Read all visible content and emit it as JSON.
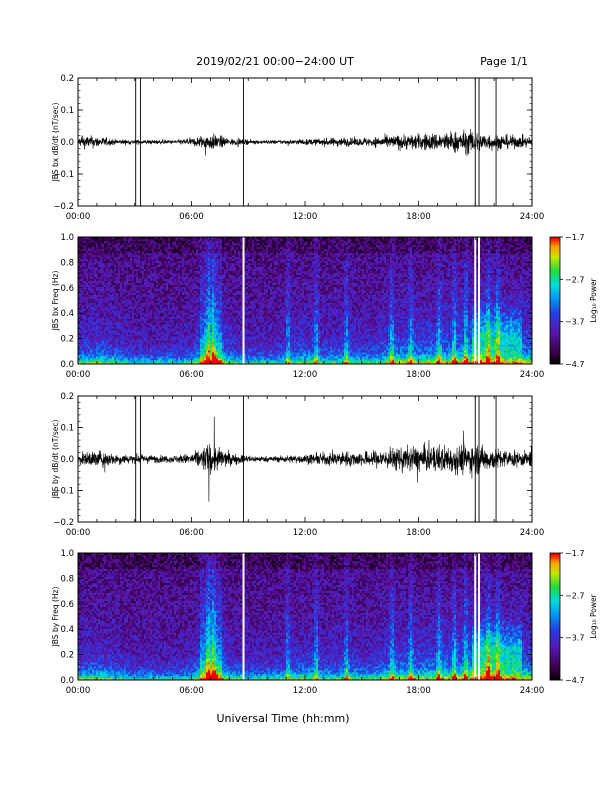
{
  "header": {
    "title": "2019/02/21  00:00−24:00 UT",
    "page": "Page 1/1"
  },
  "footer": {
    "xlabel": "Universal Time (hh:mm)"
  },
  "chart_data": [
    {
      "type": "line",
      "ylabel": "JBS bx dB/dt (nT/sec)",
      "xlim": [
        0,
        24
      ],
      "ylim": [
        -0.2,
        0.2
      ],
      "x_tick_labels": [
        "00:00",
        "06:00",
        "12:00",
        "18:00",
        "24:00"
      ],
      "y_tick_labels": [
        "0.2",
        "0.1",
        "0.0",
        "−0.1",
        "−0.2"
      ],
      "vertical_markers_hours": [
        3.05,
        3.3,
        8.75,
        21.0,
        21.2,
        22.1
      ],
      "envelope": {
        "x": [
          0,
          0.5,
          1,
          2,
          3,
          4,
          5,
          6,
          6.5,
          7,
          7.5,
          8,
          9,
          10,
          11,
          12,
          13,
          14,
          15,
          16,
          17,
          18,
          19,
          20,
          21,
          21.5,
          22,
          23,
          24
        ],
        "amplitude": [
          0.025,
          0.035,
          0.03,
          0.015,
          0.012,
          0.012,
          0.01,
          0.02,
          0.035,
          0.045,
          0.035,
          0.02,
          0.012,
          0.01,
          0.012,
          0.015,
          0.02,
          0.025,
          0.02,
          0.03,
          0.04,
          0.045,
          0.05,
          0.06,
          0.065,
          0.05,
          0.045,
          0.035,
          0.03
        ]
      }
    },
    {
      "type": "heatmap",
      "ylabel": "JBS bx Freq (Hz)",
      "xlim": [
        0,
        24
      ],
      "ylim": [
        0,
        1
      ],
      "x_tick_labels": [
        "00:00",
        "06:00",
        "12:00",
        "18:00",
        "24:00"
      ],
      "y_tick_labels": [
        "1.0",
        "0.8",
        "0.6",
        "0.4",
        "0.2",
        "0.0"
      ],
      "data_gaps_hours": [
        8.75,
        21.0,
        21.2
      ],
      "colorbar": {
        "label": "Log₁₀ Power",
        "range": [
          -4.7,
          -1.7
        ],
        "tick_labels": [
          "−1.7",
          "−2.7",
          "−3.7",
          "−4.7"
        ]
      }
    },
    {
      "type": "line",
      "ylabel": "JBS by dB/dt (nT/sec)",
      "xlim": [
        0,
        24
      ],
      "ylim": [
        -0.2,
        0.2
      ],
      "x_tick_labels": [
        "00:00",
        "06:00",
        "12:00",
        "18:00",
        "24:00"
      ],
      "y_tick_labels": [
        "0.2",
        "0.1",
        "0.0",
        "−0.1",
        "−0.2"
      ],
      "vertical_markers_hours": [
        3.05,
        3.3,
        8.75,
        21.0,
        21.2,
        22.1
      ],
      "envelope": {
        "x": [
          0,
          0.5,
          1,
          2,
          3,
          4,
          5,
          6,
          6.5,
          7,
          7.5,
          8,
          9,
          10,
          11,
          12,
          13,
          14,
          15,
          16,
          17,
          18,
          19,
          20,
          21,
          21.5,
          22,
          23,
          24
        ],
        "amplitude": [
          0.03,
          0.04,
          0.05,
          0.03,
          0.025,
          0.02,
          0.02,
          0.03,
          0.06,
          0.09,
          0.06,
          0.035,
          0.02,
          0.015,
          0.02,
          0.025,
          0.035,
          0.04,
          0.04,
          0.05,
          0.065,
          0.07,
          0.075,
          0.08,
          0.085,
          0.07,
          0.06,
          0.045,
          0.04
        ]
      }
    },
    {
      "type": "heatmap",
      "ylabel": "JBS by Freq (Hz)",
      "xlim": [
        0,
        24
      ],
      "ylim": [
        0,
        1
      ],
      "x_tick_labels": [
        "00:00",
        "06:00",
        "12:00",
        "18:00",
        "24:00"
      ],
      "y_tick_labels": [
        "1.0",
        "0.8",
        "0.6",
        "0.4",
        "0.2",
        "0.0"
      ],
      "data_gaps_hours": [
        8.75,
        21.0,
        21.2
      ],
      "colorbar": {
        "label": "Log₁₀ Power",
        "range": [
          -4.7,
          -1.7
        ],
        "tick_labels": [
          "−1.7",
          "−2.7",
          "−3.7",
          "−4.7"
        ]
      }
    }
  ]
}
